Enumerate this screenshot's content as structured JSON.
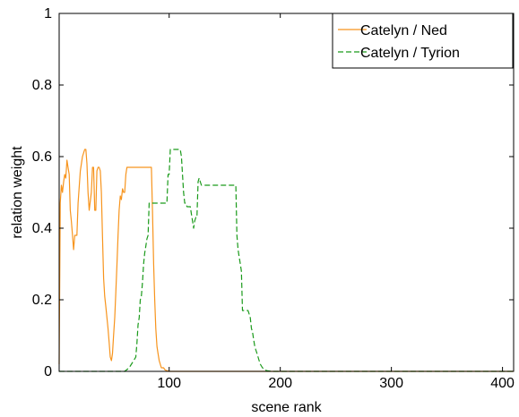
{
  "chart_data": {
    "type": "line",
    "title": "",
    "xlabel": "scene rank",
    "ylabel": "relation weight",
    "xlim": [
      1,
      410
    ],
    "ylim": [
      0,
      1
    ],
    "xticks": [
      100,
      200,
      300,
      400
    ],
    "xtick_labels": [
      "100",
      "200",
      "300",
      "400"
    ],
    "yticks": [
      0,
      0.2,
      0.4,
      0.6,
      0.8,
      1
    ],
    "ytick_labels": [
      "0",
      "0.2",
      "0.4",
      "0.6",
      "0.8",
      "1"
    ],
    "grid": false,
    "legend_position": "top-right",
    "series": [
      {
        "name": "Catelyn / Ned",
        "color": "#f7941d",
        "line_style": "solid",
        "x": [
          1,
          2,
          3,
          4,
          5,
          6,
          7,
          8,
          9,
          10,
          11,
          12,
          13,
          14,
          15,
          16,
          17,
          18,
          20,
          22,
          24,
          25,
          26,
          27,
          28,
          30,
          31,
          32,
          33,
          34,
          35,
          36,
          37,
          38,
          39,
          40,
          41,
          42,
          43,
          44,
          45,
          46,
          47,
          48,
          49,
          50,
          51,
          52,
          53,
          54,
          55,
          56,
          57,
          58,
          59,
          60,
          61,
          62,
          63,
          64,
          65,
          66,
          67,
          68,
          84,
          85,
          86,
          87,
          88,
          89,
          90,
          91,
          92,
          93,
          94,
          95,
          96,
          97,
          98,
          99,
          100,
          410
        ],
        "y": [
          0.02,
          0.47,
          0.52,
          0.5,
          0.53,
          0.55,
          0.54,
          0.59,
          0.57,
          0.55,
          0.45,
          0.42,
          0.38,
          0.34,
          0.38,
          0.38,
          0.38,
          0.47,
          0.56,
          0.6,
          0.62,
          0.62,
          0.58,
          0.5,
          0.45,
          0.5,
          0.57,
          0.57,
          0.45,
          0.45,
          0.56,
          0.57,
          0.57,
          0.56,
          0.5,
          0.38,
          0.26,
          0.21,
          0.18,
          0.15,
          0.12,
          0.08,
          0.04,
          0.03,
          0.05,
          0.1,
          0.15,
          0.22,
          0.3,
          0.38,
          0.45,
          0.49,
          0.48,
          0.51,
          0.5,
          0.5,
          0.55,
          0.57,
          0.57,
          0.57,
          0.57,
          0.57,
          0.57,
          0.57,
          0.57,
          0.45,
          0.3,
          0.2,
          0.12,
          0.07,
          0.05,
          0.03,
          0.02,
          0.01,
          0.01,
          0.01,
          0.005,
          0.003,
          0.002,
          0.001,
          0.0,
          0.0
        ]
      },
      {
        "name": "Catelyn / Tyrion",
        "color": "#1a9a1a",
        "line_style": "dashed",
        "x": [
          1,
          60,
          62,
          64,
          66,
          68,
          70,
          71,
          72,
          73,
          74,
          75,
          76,
          77,
          78,
          79,
          80,
          81,
          82,
          83,
          85,
          86,
          87,
          88,
          89,
          90,
          91,
          92,
          93,
          94,
          95,
          98,
          99,
          100,
          101,
          110,
          111,
          112,
          113,
          114,
          115,
          116,
          117,
          118,
          119,
          120,
          121,
          122,
          123,
          124,
          125,
          126,
          127,
          128,
          129,
          130,
          131,
          132,
          135,
          160,
          161,
          162,
          163,
          164,
          165,
          166,
          167,
          168,
          169,
          170,
          171,
          172,
          173,
          174,
          175,
          176,
          177,
          178,
          179,
          180,
          181,
          182,
          183,
          184,
          185,
          186,
          187,
          188,
          190,
          192,
          410
        ],
        "y": [
          0.0,
          0.0,
          0.005,
          0.01,
          0.02,
          0.03,
          0.04,
          0.08,
          0.13,
          0.15,
          0.2,
          0.21,
          0.25,
          0.3,
          0.33,
          0.35,
          0.37,
          0.38,
          0.47,
          0.47,
          0.47,
          0.47,
          0.47,
          0.47,
          0.47,
          0.47,
          0.47,
          0.47,
          0.47,
          0.47,
          0.47,
          0.47,
          0.55,
          0.55,
          0.62,
          0.62,
          0.6,
          0.55,
          0.5,
          0.47,
          0.47,
          0.46,
          0.46,
          0.46,
          0.46,
          0.44,
          0.42,
          0.4,
          0.42,
          0.43,
          0.43,
          0.53,
          0.54,
          0.53,
          0.52,
          0.52,
          0.52,
          0.52,
          0.52,
          0.52,
          0.38,
          0.34,
          0.32,
          0.3,
          0.28,
          0.17,
          0.17,
          0.17,
          0.17,
          0.17,
          0.17,
          0.16,
          0.15,
          0.12,
          0.11,
          0.09,
          0.07,
          0.06,
          0.05,
          0.04,
          0.03,
          0.02,
          0.015,
          0.01,
          0.008,
          0.005,
          0.003,
          0.002,
          0.001,
          0.0,
          0.0
        ]
      }
    ]
  }
}
